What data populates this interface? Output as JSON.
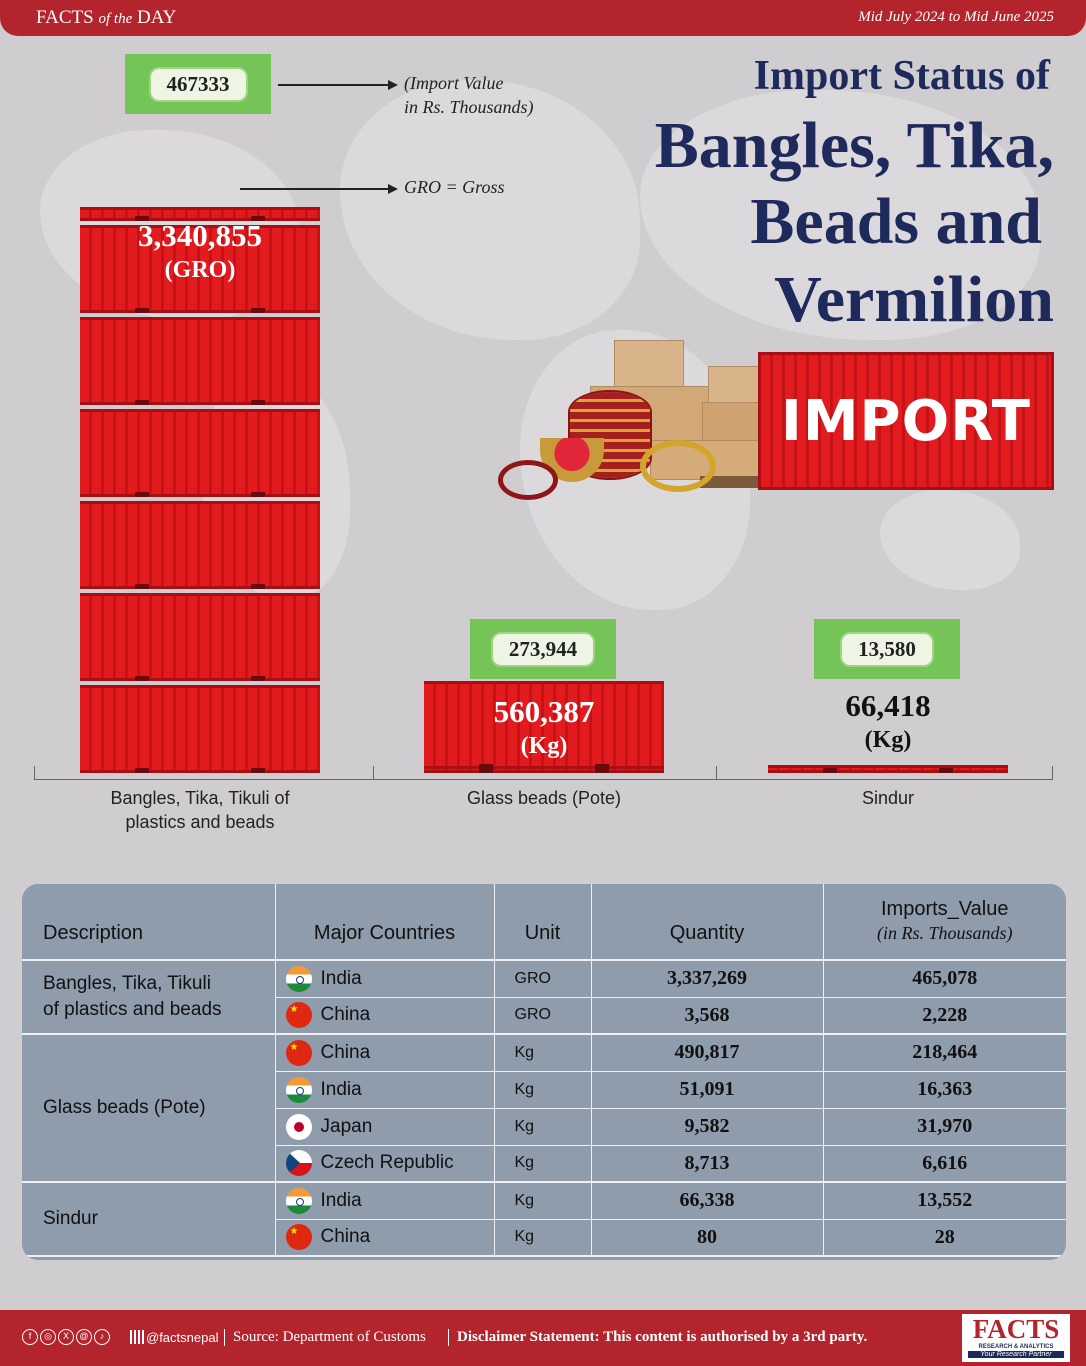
{
  "header": {
    "brand_prefix": "FACTS",
    "brand_middle": "of the",
    "brand_suffix": "DAY",
    "period": "Mid July 2024 to Mid June 2025"
  },
  "title": {
    "line1": "Import Status of",
    "line2": "Bangles, Tika,",
    "line3": "Beads and",
    "line4": "Vermilion"
  },
  "hero": {
    "container_text": "IMPORT"
  },
  "annotations": {
    "import_value_line1": "(Import Value",
    "import_value_line2": "in Rs. Thousands)",
    "gro_note": "GRO = Gross"
  },
  "chart_data": {
    "type": "bar",
    "categories": [
      "Bangles, Tika, Tikuli of plastics and beads",
      "Glass beads (Pote)",
      "Sindur"
    ],
    "category_lines": [
      [
        "Bangles, Tika, Tikuli of",
        "plastics and beads"
      ],
      [
        "Glass beads (Pote)"
      ],
      [
        "Sindur"
      ]
    ],
    "quantity_labels": [
      "3,340,855",
      "560,387",
      "66,418"
    ],
    "quantities": [
      3340855,
      560387,
      66418
    ],
    "units": [
      "(GRO)",
      "(Kg)",
      "(Kg)"
    ],
    "import_value_labels": [
      "467333",
      "273,944",
      "13,580"
    ],
    "import_values": [
      467333,
      273944,
      13580
    ],
    "title": "Import Status of Bangles, Tika, Beads and Vermilion",
    "xlabel": "",
    "ylabel": ""
  },
  "table": {
    "headers": {
      "description": "Description",
      "countries": "Major Countries",
      "unit": "Unit",
      "quantity": "Quantity",
      "value": "Imports_Value",
      "value_sub": "(in Rs. Thousands)"
    },
    "groups": [
      {
        "description_lines": [
          "Bangles, Tika, Tikuli",
          "of plastics and beads"
        ],
        "rows": [
          {
            "flag": "india-flag",
            "country": "India",
            "unit": "GRO",
            "quantity": "3,337,269",
            "value": "465,078"
          },
          {
            "flag": "china-flag",
            "country": "China",
            "unit": "GRO",
            "quantity": "3,568",
            "value": "2,228"
          }
        ]
      },
      {
        "description_lines": [
          "Glass beads (Pote)"
        ],
        "rows": [
          {
            "flag": "china-flag",
            "country": "China",
            "unit": "Kg",
            "quantity": "490,817",
            "value": "218,464"
          },
          {
            "flag": "india-flag",
            "country": "India",
            "unit": "Kg",
            "quantity": "51,091",
            "value": "16,363"
          },
          {
            "flag": "japan-flag",
            "country": "Japan",
            "unit": "Kg",
            "quantity": "9,582",
            "value": "31,970"
          },
          {
            "flag": "czech-flag",
            "country": "Czech Republic",
            "unit": "Kg",
            "quantity": "8,713",
            "value": "6,616"
          }
        ]
      },
      {
        "description_lines": [
          "Sindur"
        ],
        "rows": [
          {
            "flag": "india-flag",
            "country": "India",
            "unit": "Kg",
            "quantity": "66,338",
            "value": "13,552"
          },
          {
            "flag": "china-flag",
            "country": "China",
            "unit": "Kg",
            "quantity": "80",
            "value": "28"
          }
        ]
      }
    ]
  },
  "footer": {
    "handle": "@factsnepal",
    "source": "Source: Department of Customs",
    "disclaimer": "Disclaimer Statement: This content is authorised by a 3rd party.",
    "logo_text": "FACTS",
    "logo_sub1": "RESEARCH & ANALYTICS",
    "logo_sub2": "Your Research Partner"
  },
  "colors": {
    "brand_red": "#b3242d",
    "container_red": "#e21b1f",
    "money_green": "#75c458",
    "title_navy": "#1f2a5c",
    "table_bg": "#8f9cac"
  }
}
